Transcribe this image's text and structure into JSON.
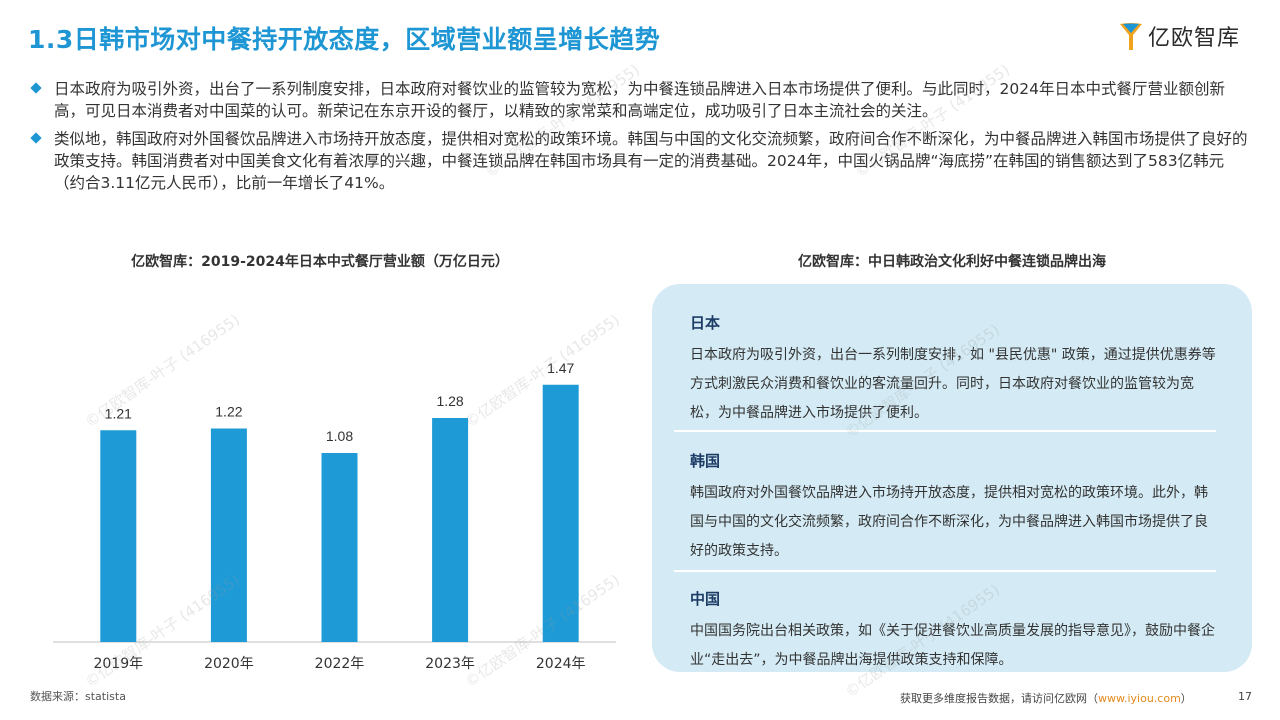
{
  "title": "1.3日韩市场对中餐持开放态度，区域营业额呈增长趋势",
  "logo": {
    "text": "亿欧智库"
  },
  "bullets": [
    "日本政府为吸引外资，出台了一系列制度安排，日本政府对餐饮业的监管较为宽松，为中餐连锁品牌进入日本市场提供了便利。与此同时，2024年日本中式餐厅营业额创新高，可见日本消费者对中国菜的认可。新荣记在东京开设的餐厅，以精致的家常菜和高端定位，成功吸引了日本主流社会的关注。",
    "类似地，韩国政府对外国餐饮品牌进入市场持开放态度，提供相对宽松的政策环境。韩国与中国的文化交流频繁，政府间合作不断深化，为中餐品牌进入韩国市场提供了良好的政策支持。韩国消费者对中国美食文化有着浓厚的兴趣，中餐连锁品牌在韩国市场具有一定的消费基础。2024年，中国火锅品牌“海底捞”在韩国的销售额达到了583亿韩元（约合3.11亿元人民币），比前一年增长了41%。"
  ],
  "chart_data": {
    "type": "bar",
    "title": "亿欧智库：2019-2024年日本中式餐厅营业额（万亿日元）",
    "categories": [
      "2019年",
      "2020年",
      "2022年",
      "2023年",
      "2024年"
    ],
    "values": [
      1.21,
      1.22,
      1.08,
      1.28,
      1.47
    ],
    "value_labels": [
      "1.21",
      "1.22",
      "1.08",
      "1.28",
      "1.47"
    ],
    "ylim": [
      0,
      1.6
    ],
    "color": "#1e9bd7",
    "grid": false,
    "legend": "none"
  },
  "panel": {
    "title": "亿欧智库：中日韩政治文化利好中餐连锁品牌出海",
    "sections": [
      {
        "heading": "日本",
        "text": "日本政府为吸引外资，出台一系列制度安排，如 \"县民优惠\" 政策，通过提供优惠券等方式刺激民众消费和餐饮业的客流量回升。同时，日本政府对餐饮业的监管较为宽松，为中餐品牌进入市场提供了便利。"
      },
      {
        "heading": "韩国",
        "text": "韩国政府对外国餐饮品牌进入市场持开放态度，提供相对宽松的政策环境。此外，韩国与中国的文化交流频繁，政府间合作不断深化，为中餐品牌进入韩国市场提供了良好的政策支持。"
      },
      {
        "heading": "中国",
        "text": "中国国务院出台相关政策，如《关于促进餐饮业高质量发展的指导意见》，鼓励中餐企业“走出去”，为中餐品牌出海提供政策支持和保障。"
      }
    ]
  },
  "footer": {
    "source": "数据来源：statista",
    "right_text": "获取更多维度报告数据，请访问亿欧网（",
    "url": "www.iyiou.com",
    "right_close": "）",
    "page": "17"
  },
  "watermark": "©亿欧智库-叶子 (416955)",
  "colors": {
    "accent": "#1e96d4",
    "panel_bg": "#d4ebf5",
    "heading": "#1d3c66",
    "link": "#e38a1e"
  }
}
